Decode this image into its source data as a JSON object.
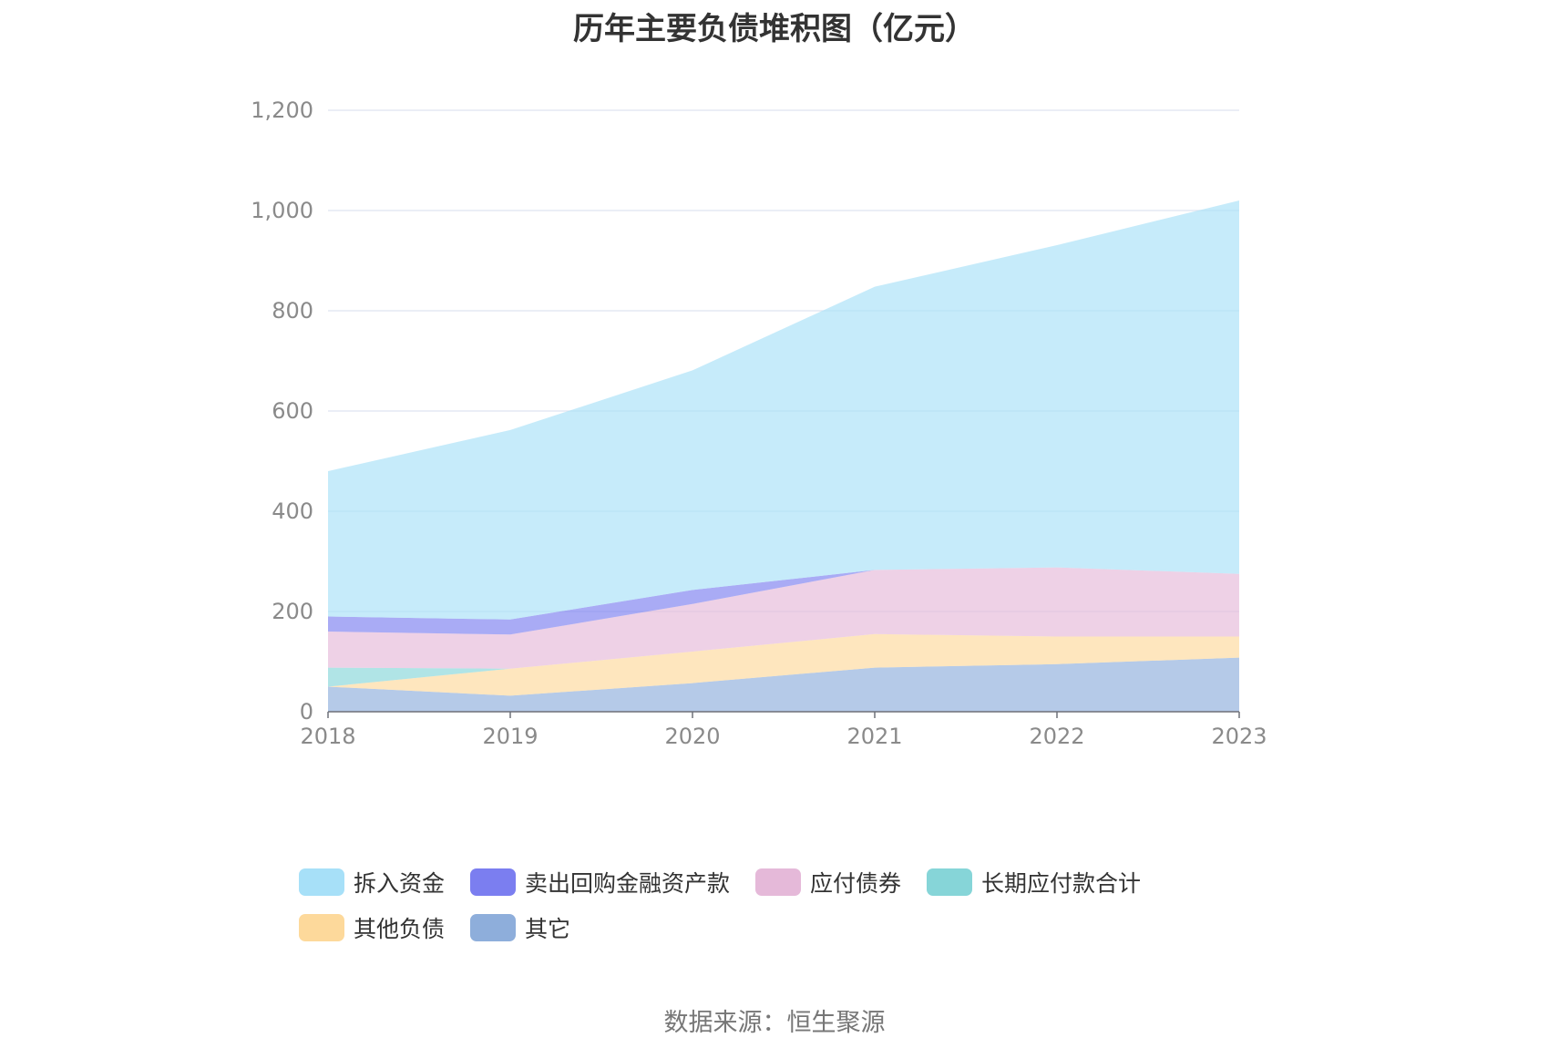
{
  "title": "历年主要负债堆积图（亿元）",
  "source": "数据来源：恒生聚源",
  "chart_data": {
    "type": "area",
    "stacked": true,
    "title": "历年主要负债堆积图（亿元）",
    "xlabel": "",
    "ylabel": "",
    "categories": [
      "2018",
      "2019",
      "2020",
      "2021",
      "2022",
      "2023"
    ],
    "ylim": [
      0,
      1200
    ],
    "yticks": [
      0,
      200,
      400,
      600,
      800,
      1000,
      1200
    ],
    "ytick_labels": [
      "0",
      "200",
      "400",
      "600",
      "800",
      "1,000",
      "1,200"
    ],
    "grid": true,
    "legend_position": "bottom",
    "series": [
      {
        "name": "其它",
        "color": "#8eaedb",
        "values": [
          50,
          32,
          57,
          88,
          95,
          108
        ]
      },
      {
        "name": "其他负债",
        "color": "#fdd99b",
        "values": [
          0,
          54,
          63,
          67,
          55,
          42
        ]
      },
      {
        "name": "长期应付款合计",
        "color": "#86d5d8",
        "values": [
          38,
          0,
          0,
          0,
          0,
          0
        ]
      },
      {
        "name": "应付债券",
        "color": "#e5b9d9",
        "values": [
          72,
          68,
          95,
          128,
          138,
          125
        ]
      },
      {
        "name": "卖出回购金融资产款",
        "color": "#7b7ef0",
        "values": [
          30,
          30,
          28,
          0,
          0,
          0
        ]
      },
      {
        "name": "拆入资金",
        "color": "#a7e0f8",
        "values": [
          290,
          378,
          438,
          565,
          643,
          745
        ]
      }
    ],
    "legend_order": [
      "拆入资金",
      "卖出回购金融资产款",
      "应付债券",
      "长期应付款合计",
      "其他负债",
      "其它"
    ]
  }
}
